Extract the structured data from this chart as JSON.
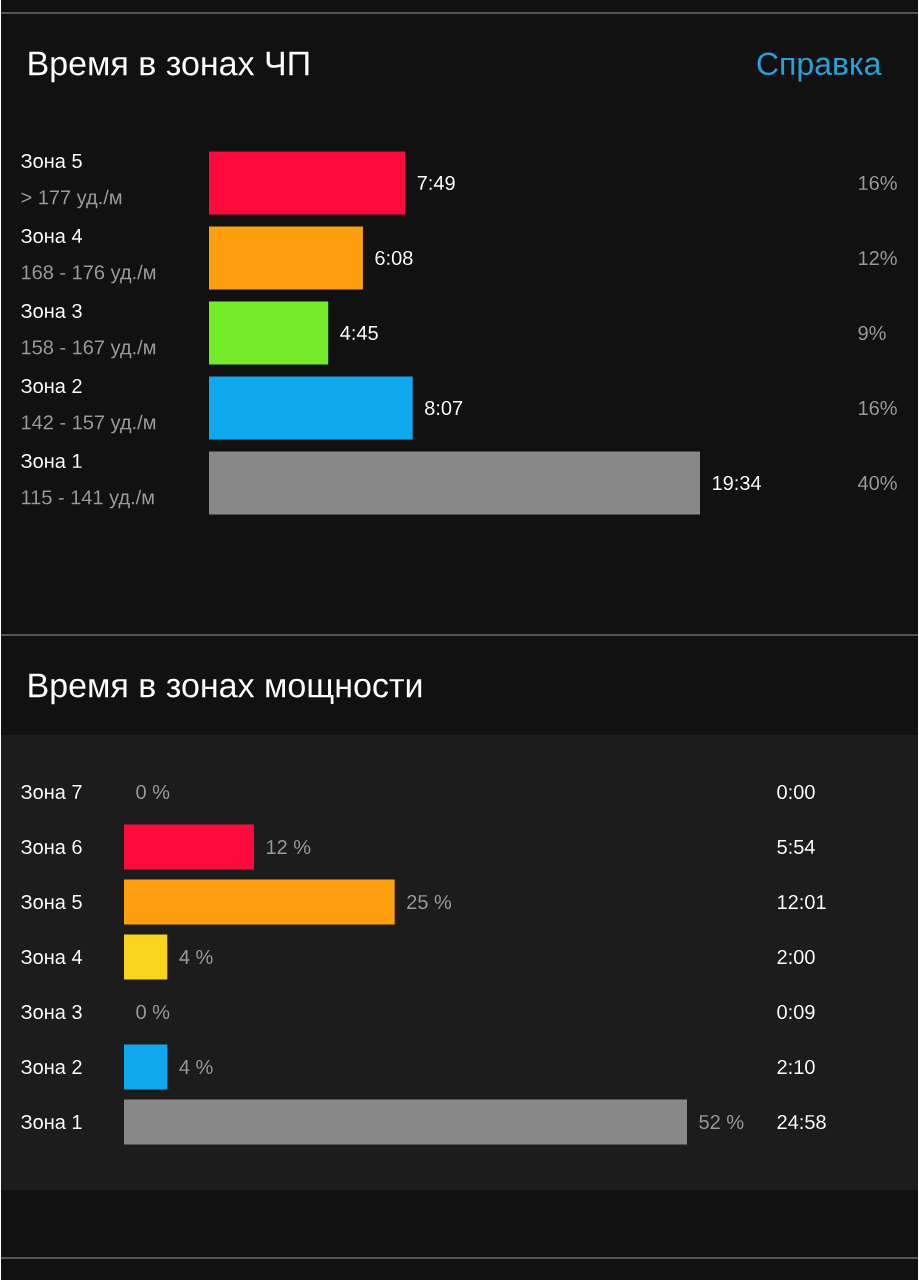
{
  "chart_data": [
    {
      "type": "bar",
      "orientation": "horizontal",
      "title": "Время в зонах ЧП",
      "categories": [
        "Зона 5",
        "Зона 4",
        "Зона 3",
        "Зона 2",
        "Зона 1"
      ],
      "values": [
        7.817,
        6.133,
        4.75,
        8.117,
        19.567
      ],
      "value_labels": [
        "7:49",
        "6:08",
        "4:45",
        "8:07",
        "19:34"
      ],
      "colors": [
        "#ff0a3c",
        "#ff9f0f",
        "#74ec2a",
        "#11a9ed",
        "#888888"
      ],
      "annotations": [
        "> 177 уд./м",
        "168 - 176 уд./м",
        "158 - 167 уд./м",
        "142 - 157 уд./м",
        "115 - 141 уд./м",
        "16%",
        "12%",
        "9%",
        "16%",
        "40%",
        "Справка"
      ]
    },
    {
      "type": "bar",
      "orientation": "horizontal",
      "title": "Время в зонах мощности",
      "categories": [
        "Зона 7",
        "Зона 6",
        "Зона 5",
        "Зона 4",
        "Зона 3",
        "Зона 2",
        "Зона 1"
      ],
      "values": [
        0,
        12,
        25,
        4,
        0,
        4,
        52
      ],
      "value_labels": [
        "0 %",
        "12 %",
        "25 %",
        "4 %",
        "0 %",
        "4 %",
        "52 %"
      ],
      "colors": [
        "#ff0a3c",
        "#ff0a3c",
        "#ff9f0f",
        "#f9d31c",
        "#74ec2a",
        "#11a9ed",
        "#888888"
      ],
      "annotations": [
        "0:00",
        "5:54",
        "12:01",
        "2:00",
        "0:09",
        "2:10",
        "24:58"
      ]
    }
  ]
}
